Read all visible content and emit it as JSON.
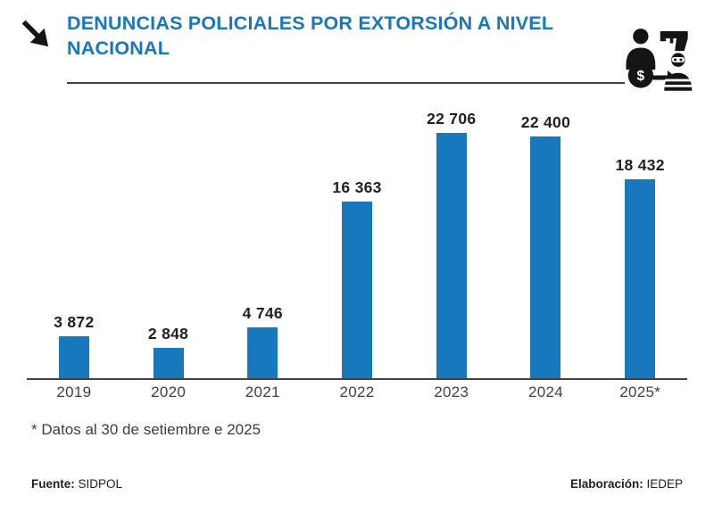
{
  "header": {
    "title": "DENUNCIAS POLICIALES POR EXTORSIÓN A NIVEL NACIONAL"
  },
  "chart_data": {
    "type": "bar",
    "categories": [
      "2019",
      "2020",
      "2021",
      "2022",
      "2023",
      "2024",
      "2025*"
    ],
    "values": [
      3872,
      2848,
      4746,
      16363,
      22706,
      22400,
      18432
    ],
    "value_labels": [
      "3 872",
      "2 848",
      "4 746",
      "16 363",
      "22 706",
      "22 400",
      "18 432"
    ],
    "title": "DENUNCIAS POLICIALES POR EXTORSIÓN A NIVEL NACIONAL",
    "xlabel": "",
    "ylabel": "",
    "ylim": [
      0,
      24000
    ],
    "grid": false,
    "legend": false,
    "bar_color": "#1878be"
  },
  "footnote": "* Datos al 30 de setiembre e 2025",
  "footer": {
    "source_label": "Fuente:",
    "source_value": " SIDPOL",
    "elaboration_label": "Elaboración:",
    "elaboration_value": " IEDEP"
  },
  "icons": {
    "top_left": "arrow-down-right-icon",
    "top_right": "extortion-gun-moneybag-robber-icon"
  },
  "colors": {
    "accent_blue": "#1878be",
    "axis_dark": "#414042",
    "text_dark": "#231f20",
    "icon_black": "#141414"
  }
}
